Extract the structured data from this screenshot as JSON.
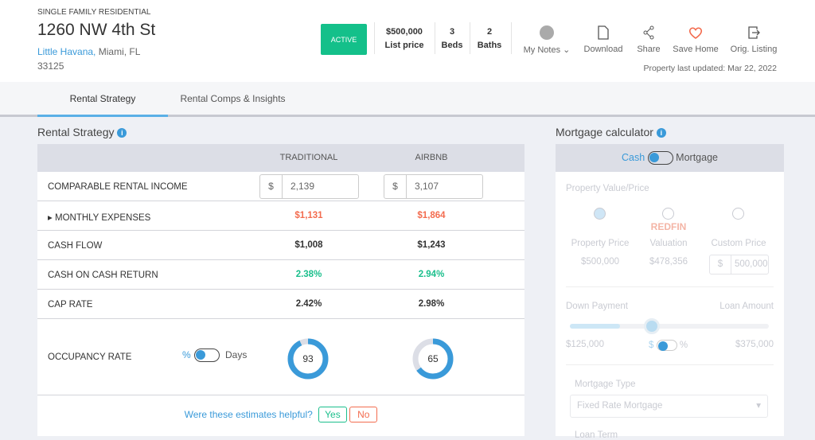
{
  "property": {
    "type": "SINGLE FAMILY RESIDENTIAL",
    "address": "1260 NW 4th St",
    "neighborhood": "Little Havana,",
    "city": "Miami, FL",
    "zip": "33125",
    "status": "ACTIVE",
    "price": "$500,000",
    "price_label": "List price",
    "beds": "3",
    "beds_label": "Beds",
    "baths": "2",
    "baths_label": "Baths",
    "updated": "Property last updated: Mar 22, 2022"
  },
  "actions": [
    {
      "label": "My Notes ⌄",
      "icon": "notes-avatar-icon"
    },
    {
      "label": "Download",
      "icon": "pdf-icon"
    },
    {
      "label": "Share",
      "icon": "share-icon"
    },
    {
      "label": "Save Home",
      "icon": "heart-icon"
    },
    {
      "label": "Orig. Listing",
      "icon": "external-link-icon"
    }
  ],
  "tabs": [
    {
      "label": "Rental Strategy"
    },
    {
      "label": "Rental Comps & Insights"
    }
  ],
  "rental": {
    "title": "Rental Strategy",
    "col1": "TRADITIONAL",
    "col2": "AIRBNB",
    "rows": [
      {
        "label": "COMPARABLE RENTAL INCOME",
        "v1": "2,139",
        "v2": "3,107",
        "prefix": "$"
      },
      {
        "label": "MONTHLY EXPENSES",
        "v1": "$1,131",
        "v2": "$1,864"
      },
      {
        "label": "CASH FLOW",
        "v1": "$1,008",
        "v2": "$1,243"
      },
      {
        "label": "CASH ON CASH RETURN",
        "v1": "2.38%",
        "v2": "2.94%"
      },
      {
        "label": "CAP RATE",
        "v1": "2.42%",
        "v2": "2.98%"
      }
    ],
    "occupancy": {
      "label": "OCCUPANCY RATE",
      "pct": "%",
      "days": "Days",
      "v1": "93",
      "v2": "65"
    },
    "helpful": "Were these estimates helpful?",
    "yes": "Yes",
    "no": "No"
  },
  "mortgage": {
    "title": "Mortgage calculator",
    "cash": "Cash",
    "mortgage": "Mortgage",
    "pv_label": "Property Value/Price",
    "opt1": "Property Price",
    "opt1_val": "$500,000",
    "redfin": "REDFIN",
    "opt2": "Valuation",
    "opt2_val": "$478,356",
    "opt3": "Custom Price",
    "opt3_prefix": "$",
    "opt3_val": "500,000",
    "down": "Down Payment",
    "loan": "Loan Amount",
    "down_val": "$125,000",
    "loan_val": "$375,000",
    "dollar": "$",
    "percent": "%",
    "down_fraction": 0.25,
    "type_label": "Mortgage Type",
    "type_val": "Fixed Rate Mortgage",
    "term_label": "Loan Term"
  },
  "colors": {
    "accent": "#3a9ad9",
    "active": "#14c08a",
    "negative": "#f36c4f",
    "positive": "#1bbf8c"
  }
}
